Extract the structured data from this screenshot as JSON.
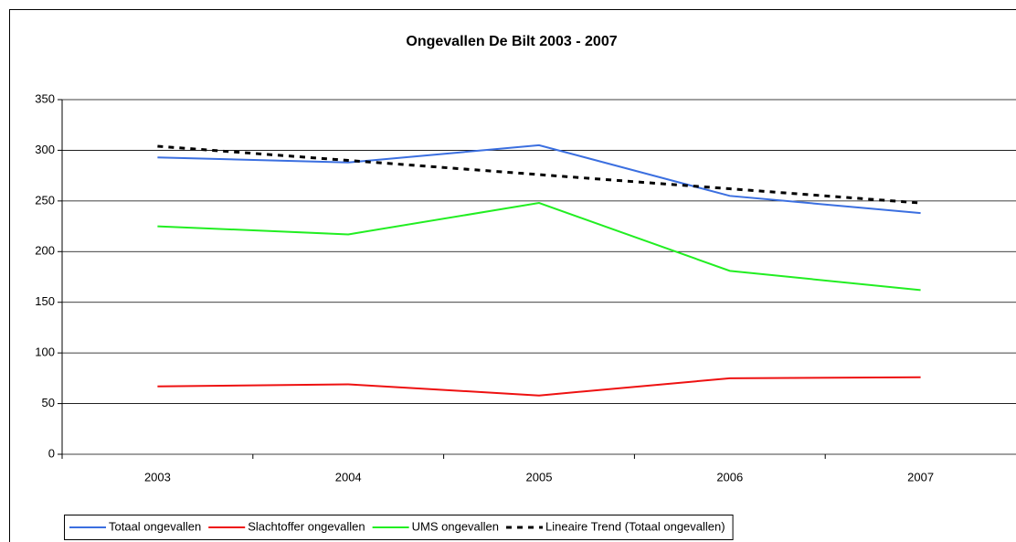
{
  "chart_data": {
    "type": "line",
    "title": "Ongevallen De Bilt 2003 - 2007",
    "categories": [
      "2003",
      "2004",
      "2005",
      "2006",
      "2007"
    ],
    "series": [
      {
        "name": "Totaal ongevallen",
        "color": "#3b6fe0",
        "values": [
          293,
          288,
          305,
          255,
          238
        ]
      },
      {
        "name": "Slachtoffer ongevallen",
        "color": "#ee1111",
        "values": [
          67,
          69,
          58,
          75,
          76
        ]
      },
      {
        "name": "UMS ongevallen",
        "color": "#22ee22",
        "values": [
          225,
          217,
          248,
          181,
          162
        ]
      },
      {
        "name": "Lineaire Trend (Totaal ongevallen)",
        "color": "#000000",
        "dashed": true,
        "values": [
          304,
          290,
          276,
          262,
          248
        ]
      }
    ],
    "ylim": [
      0,
      350
    ],
    "yticks": [
      0,
      50,
      100,
      150,
      200,
      250,
      300,
      350
    ],
    "grid": true,
    "legend": "bottom"
  }
}
